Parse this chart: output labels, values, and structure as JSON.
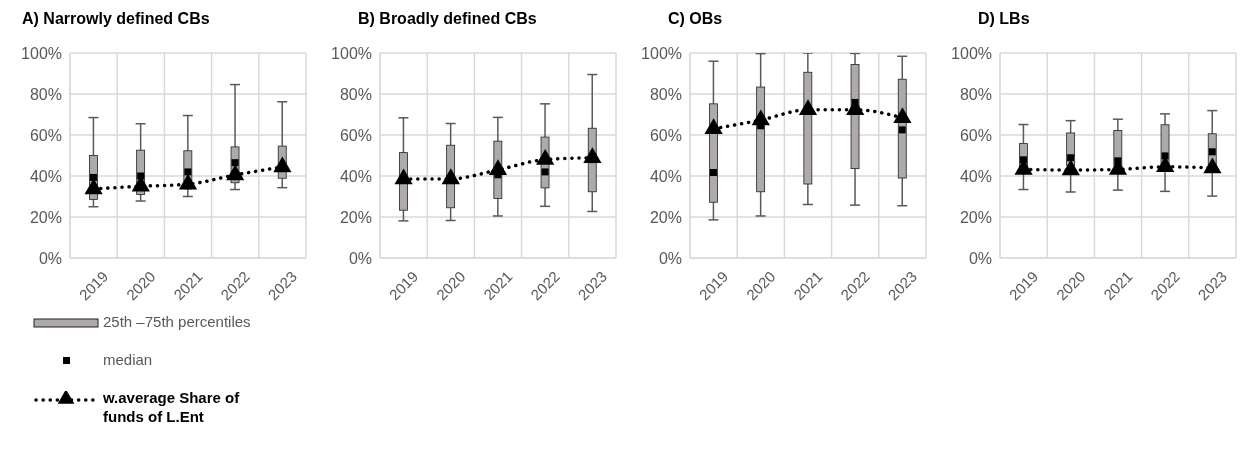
{
  "chart_data": [
    {
      "type": "box",
      "title": "A) Narrowly defined CBs",
      "categories": [
        "2019",
        "2020",
        "2021",
        "2022",
        "2023"
      ],
      "ylim": [
        0,
        100
      ],
      "yticks": [
        {
          "value": 0,
          "label": "0%"
        },
        {
          "value": 20,
          "label": "20%"
        },
        {
          "value": 40,
          "label": "40%"
        },
        {
          "value": 60,
          "label": "60%"
        },
        {
          "value": 80,
          "label": "80%"
        },
        {
          "value": 100,
          "label": "100%"
        }
      ],
      "grid": true,
      "legend": "bottom left",
      "annotations": [
        "median"
      ],
      "series": [
        {
          "type": "box",
          "name": "25th –75th percentiles",
          "color": "#aeaaaa",
          "boxes": [
            {
              "low": 25,
              "q1": 28.6,
              "median": 39.3,
              "q3": 50,
              "high": 68.5
            },
            {
              "low": 27.8,
              "q1": 31,
              "median": 40,
              "q3": 52.6,
              "high": 65.5
            },
            {
              "low": 30,
              "q1": 33.7,
              "median": 42,
              "q3": 52.3,
              "high": 69.5
            },
            {
              "low": 33.4,
              "q1": 36.7,
              "median": 46.5,
              "q3": 54.2,
              "high": 84.6
            },
            {
              "low": 34.3,
              "q1": 38.9,
              "median": 44,
              "q3": 54.6,
              "high": 76.2
            }
          ]
        },
        {
          "type": "line",
          "name": "w.average Share of funds of L.Ent",
          "color": "#000000",
          "marker": "triangle",
          "line_style": "dotted",
          "values": [
            33.7,
            35,
            36,
            40.5,
            44.4
          ]
        }
      ]
    },
    {
      "type": "box",
      "title": "B) Broadly defined CBs",
      "categories": [
        "2019",
        "2020",
        "2021",
        "2022",
        "2023"
      ],
      "ylim": [
        0,
        100
      ],
      "yticks": [
        {
          "value": 0,
          "label": "0%"
        },
        {
          "value": 20,
          "label": "20%"
        },
        {
          "value": 40,
          "label": "40%"
        },
        {
          "value": 60,
          "label": "60%"
        },
        {
          "value": 80,
          "label": "80%"
        },
        {
          "value": 100,
          "label": "100%"
        }
      ],
      "grid": true,
      "series": [
        {
          "type": "box",
          "color": "#aeaaaa",
          "boxes": [
            {
              "low": 18.1,
              "q1": 23.3,
              "median": 39,
              "q3": 51.4,
              "high": 68.4
            },
            {
              "low": 18.3,
              "q1": 24.5,
              "median": 38.3,
              "q3": 55,
              "high": 65.6
            },
            {
              "low": 20.5,
              "q1": 29,
              "median": 40.6,
              "q3": 57,
              "high": 68.6
            },
            {
              "low": 25.2,
              "q1": 34.2,
              "median": 42,
              "q3": 59,
              "high": 75.2
            },
            {
              "low": 22.7,
              "q1": 32.3,
              "median": 48,
              "q3": 63.3,
              "high": 89.5
            }
          ]
        },
        {
          "type": "line",
          "color": "#000000",
          "marker": "triangle",
          "line_style": "dotted",
          "values": [
            38.5,
            38.6,
            43,
            48,
            48.9
          ]
        }
      ]
    },
    {
      "type": "box",
      "title": "C) OBs",
      "categories": [
        "2019",
        "2020",
        "2021",
        "2022",
        "2023"
      ],
      "ylim": [
        0,
        100
      ],
      "yticks": [
        {
          "value": 0,
          "label": "0%"
        },
        {
          "value": 20,
          "label": "20%"
        },
        {
          "value": 40,
          "label": "40%"
        },
        {
          "value": 60,
          "label": "60%"
        },
        {
          "value": 80,
          "label": "80%"
        },
        {
          "value": 100,
          "label": "100%"
        }
      ],
      "grid": true,
      "series": [
        {
          "type": "box",
          "color": "#aeaaaa",
          "boxes": [
            {
              "low": 18.6,
              "q1": 27.2,
              "median": 41.7,
              "q3": 75.2,
              "high": 96
            },
            {
              "low": 20.5,
              "q1": 32.3,
              "median": 64.5,
              "q3": 83.4,
              "high": 99.7
            },
            {
              "low": 26.1,
              "q1": 36.1,
              "median": 72,
              "q3": 90.6,
              "high": 100
            },
            {
              "low": 25.8,
              "q1": 43.6,
              "median": 75.9,
              "q3": 94.4,
              "high": 99.8
            },
            {
              "low": 25.5,
              "q1": 39,
              "median": 62.5,
              "q3": 87.2,
              "high": 98.4
            }
          ]
        },
        {
          "type": "line",
          "color": "#000000",
          "marker": "triangle",
          "line_style": "dotted",
          "values": [
            63,
            67.3,
            72.3,
            72.3,
            68.4
          ]
        }
      ]
    },
    {
      "type": "box",
      "title": "D) LBs",
      "categories": [
        "2019",
        "2020",
        "2021",
        "2022",
        "2023"
      ],
      "ylim": [
        0,
        100
      ],
      "yticks": [
        {
          "value": 0,
          "label": "0%"
        },
        {
          "value": 20,
          "label": "20%"
        },
        {
          "value": 40,
          "label": "40%"
        },
        {
          "value": 60,
          "label": "60%"
        },
        {
          "value": 80,
          "label": "80%"
        },
        {
          "value": 100,
          "label": "100%"
        }
      ],
      "grid": true,
      "series": [
        {
          "type": "box",
          "color": "#aeaaaa",
          "boxes": [
            {
              "low": 33.4,
              "q1": 43,
              "median": 47.9,
              "q3": 55.8,
              "high": 65.1
            },
            {
              "low": 32.2,
              "q1": 45,
              "median": 48.9,
              "q3": 61,
              "high": 67
            },
            {
              "low": 33.1,
              "q1": 45,
              "median": 47.4,
              "q3": 62.2,
              "high": 67.7
            },
            {
              "low": 32.5,
              "q1": 46,
              "median": 49.8,
              "q3": 65,
              "high": 70.3
            },
            {
              "low": 30.2,
              "q1": 45,
              "median": 51.8,
              "q3": 60.6,
              "high": 71.9
            }
          ]
        },
        {
          "type": "line",
          "color": "#000000",
          "marker": "triangle",
          "line_style": "dotted",
          "values": [
            43.2,
            42.9,
            43.2,
            44.5,
            43.9
          ]
        }
      ]
    }
  ]
}
